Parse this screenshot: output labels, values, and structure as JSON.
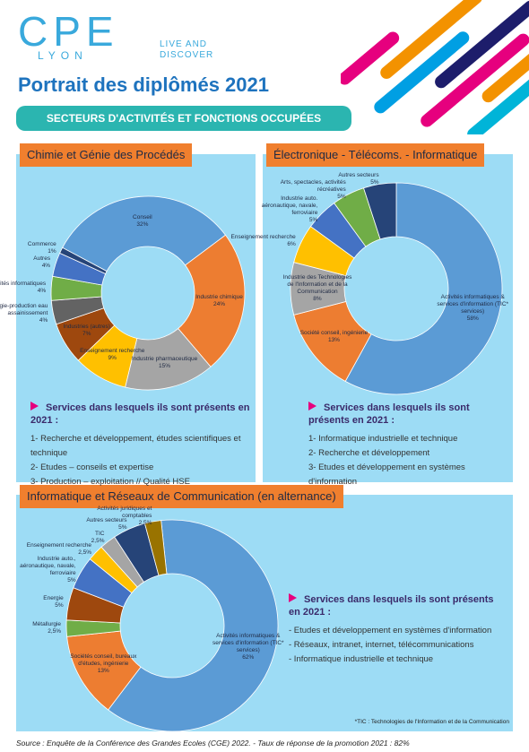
{
  "header": {
    "logo": "CPE",
    "logo_sub": "LYON",
    "tagline": "LIVE AND DISCOVER",
    "title": "Portrait des diplômés 2021",
    "banner": "SECTEURS D'ACTIVITÉS ET FONCTIONS OCCUPÉES"
  },
  "chart_data": [
    {
      "type": "donut",
      "title": "Chimie et Génie des Procédés",
      "categories": [
        "Conseil",
        "Industrie chimique",
        "Industrie pharmaceutique",
        "Enseignement recherche",
        "Industries (autres)",
        "Energie-production eau assainissement",
        "Activités informatiques",
        "Autres",
        "Commerce"
      ],
      "values": [
        32,
        24,
        15,
        9,
        7,
        4,
        4,
        4,
        1
      ],
      "value_labels": [
        "32%",
        "24%",
        "15%",
        "9%",
        "7%",
        "4%",
        "4%",
        "4%",
        "1%"
      ],
      "colors": [
        "#5b9bd5",
        "#ed7d31",
        "#a5a5a5",
        "#ffc000",
        "#9e480e",
        "#636363",
        "#70ad47",
        "#4472c4",
        "#264478"
      ]
    },
    {
      "type": "donut",
      "title": "Électronique - Télécoms. - Informatique",
      "categories": [
        "Activités informatiques & services d'information (TIC* services)",
        "Société conseil, ingénierie",
        "Industrie des Technologies de l'Information et de la Communication",
        "Enseignement recherche",
        "Industrie auto. aéronautique, navale, ferroviaire",
        "Arts, spectacles, activités récréatives",
        "Autres secteurs"
      ],
      "values": [
        58,
        13,
        8,
        6,
        5,
        5,
        5
      ],
      "value_labels": [
        "58%",
        "13%",
        "8%",
        "6%",
        "5%",
        "5%",
        "5%"
      ],
      "colors": [
        "#5b9bd5",
        "#ed7d31",
        "#a5a5a5",
        "#ffc000",
        "#4472c4",
        "#70ad47",
        "#264478"
      ]
    },
    {
      "type": "donut",
      "title": "Informatique et Réseaux de Communication (en alternance)",
      "categories": [
        "Activités informatiques & services d'information (TIC* services)",
        "Sociétés conseil, bureaux d'études, ingénierie",
        "Métallurgie",
        "Energie",
        "Industrie auto., aéronautique, navale, ferroviaire",
        "Enseignement recherche",
        "TIC",
        "Autres secteurs",
        "Activités juridiques et comptables"
      ],
      "values": [
        62,
        13,
        2.5,
        5,
        5,
        2.5,
        2.5,
        5,
        2.5
      ],
      "value_labels": [
        "62%",
        "13%",
        "2,5%",
        "5%",
        "5%",
        "2,5%",
        "2,5%",
        "5%",
        "2,5%"
      ],
      "colors": [
        "#5b9bd5",
        "#ed7d31",
        "#70ad47",
        "#9e480e",
        "#4472c4",
        "#ffc000",
        "#a5a5a5",
        "#264478",
        "#997300"
      ]
    }
  ],
  "panels": [
    {
      "heading": "Services dans lesquels ils sont présents en 2021 :",
      "services": [
        "1- Recherche et développement, études scientifiques et technique",
        "2- Etudes – conseils et expertise",
        "3- Production – exploitation // Qualité HSE"
      ]
    },
    {
      "heading": "Services dans lesquels ils sont présents en 2021 :",
      "services": [
        "1- Informatique industrielle et technique",
        "2- Recherche et développement",
        "3- Etudes et développement en systèmes d'information"
      ]
    },
    {
      "heading": "Services dans lesquels ils sont présents en 2021 :",
      "services": [
        "- Etudes et développement en systèmes d'information",
        "- Réseaux, intranet, internet, télécommunications",
        "- Informatique industrielle et technique"
      ]
    }
  ],
  "footnote": "*TIC : Technologies de l'Information et de la Communication",
  "source": "Source : Enquête de la Conférence des Grandes Ecoles (CGE) 2022. - Taux de réponse de la promotion 2021 : 82%"
}
